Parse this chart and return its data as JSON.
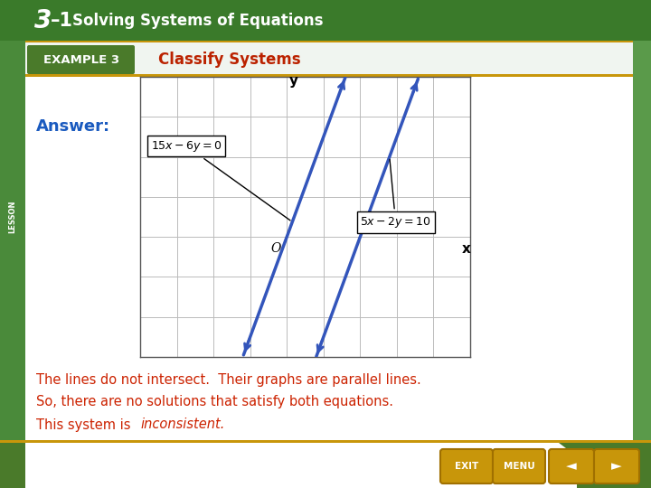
{
  "header_bg": "#3a7a2a",
  "header_text_3": "3",
  "header_text_dash": "–1",
  "header_text_title": "Solving Systems of Equations",
  "left_stripe_color": "#4a8a3a",
  "right_stripe_color": "#5a9a4a",
  "white_bg": "#ffffff",
  "example_badge_color": "#4a7a2a",
  "example_text": "EXAMPLE 3",
  "classify_text": "Classify Systems",
  "classify_color": "#bb2200",
  "gold_bar_color": "#c8960a",
  "answer_text": "Answer:",
  "answer_color": "#1a5abf",
  "line1_eq_label": "$15x - 6y = 0$",
  "line2_eq_label": "$5x - 2y = 10$",
  "line_color": "#3355bb",
  "grid_color": "#bbbbbb",
  "body_line1": "The lines do not intersect.  Their graphs are parallel lines.",
  "body_line2": "So, there are no solutions that satisfy both equations.",
  "body_line3_plain": "This system is ",
  "body_line3_italic": "inconsistent.",
  "body_color": "#cc2200",
  "nav_bg": "#4a7a2a",
  "btn_color": "#c8960a",
  "graph_xlim": [
    -4,
    5
  ],
  "graph_ylim": [
    -3,
    4
  ],
  "line1_slope": 2.5,
  "line1_b": 0,
  "line2_slope": 2.5,
  "line2_b": -5
}
